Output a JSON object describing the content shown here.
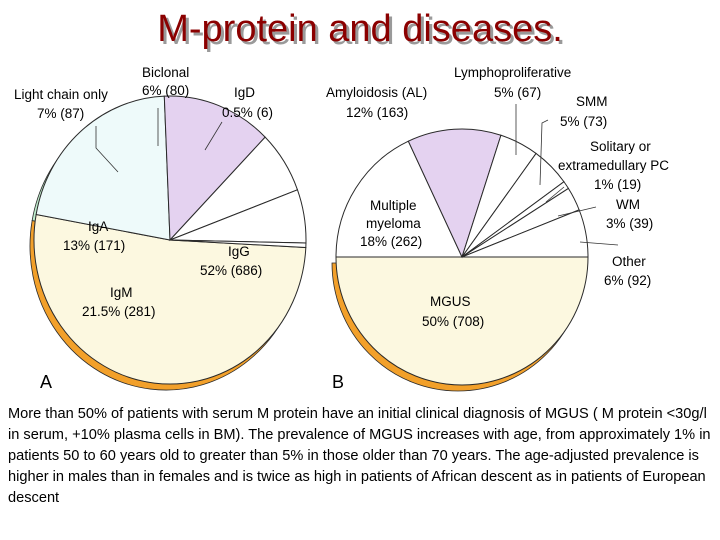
{
  "title": "M-protein and diseases.",
  "chart_data": [
    {
      "type": "pie",
      "panel_label": "A",
      "slices": [
        {
          "name": "IgG",
          "percent_label": "52%",
          "count": "(686)",
          "percent": 52,
          "color": "#fcf8e0"
        },
        {
          "name": "IgM",
          "percent_label": "21.5%",
          "count": "(281)",
          "percent": 21.5,
          "color": "#eefafa"
        },
        {
          "name": "IgA",
          "percent_label": "13%",
          "count": "(171)",
          "percent": 13,
          "color": "#e4d2f0"
        },
        {
          "name": "Light chain only",
          "percent_label": "7%",
          "count": "(87)",
          "percent": 7,
          "color": "#ffffff"
        },
        {
          "name": "Biclonal",
          "percent_label": "6%",
          "count": "(80)",
          "percent": 6,
          "color": "#ffffff"
        },
        {
          "name": "IgD",
          "percent_label": "0.5%",
          "count": "(6)",
          "percent": 0.5,
          "color": "#ffffff"
        }
      ]
    },
    {
      "type": "pie",
      "panel_label": "B",
      "slices": [
        {
          "name": "MGUS",
          "percent_label": "50%",
          "count": "(708)",
          "percent": 50,
          "color": "#fcf8e0"
        },
        {
          "name": "Multiple myeloma",
          "percent_label": "18%",
          "count": "(262)",
          "percent": 18,
          "color": "#ffffff"
        },
        {
          "name": "Amyloidosis (AL)",
          "percent_label": "12%",
          "count": "(163)",
          "percent": 12,
          "color": "#e4d2f0"
        },
        {
          "name": "Lymphoproliferative",
          "percent_label": "5%",
          "count": "(67)",
          "percent": 5,
          "color": "#ffffff"
        },
        {
          "name": "SMM",
          "percent_label": "5%",
          "count": "(73)",
          "percent": 5,
          "color": "#ffffff"
        },
        {
          "name": "Solitary or extramedullary PC",
          "percent_label": "1%",
          "count": "(19)",
          "percent": 1,
          "color": "#ffffff"
        },
        {
          "name": "WM",
          "percent_label": "3%",
          "count": "(39)",
          "percent": 3,
          "color": "#ffffff"
        },
        {
          "name": "Other",
          "percent_label": "6%",
          "count": "(92)",
          "percent": 6,
          "color": "#ffffff"
        }
      ]
    }
  ],
  "labels": {
    "a": {
      "light_l1": "Light chain only",
      "light_l2": "7% (87)",
      "biclonal_l1": "Biclonal",
      "biclonal_l2": "6% (80)",
      "igd_l1": "IgD",
      "igd_l2": "0.5% (6)",
      "iga_l1": "IgA",
      "iga_l2": "13% (171)",
      "igg_l1": "IgG",
      "igg_l2": "52% (686)",
      "igm_l1": "IgM",
      "igm_l2": "21.5% (281)"
    },
    "b": {
      "amyloid_l1": "Amyloidosis (AL)",
      "amyloid_l2": "12% (163)",
      "lympho_l1": "Lymphoproliferative",
      "lympho_l2": "5% (67)",
      "smm_l1": "SMM",
      "smm_l2": "5% (73)",
      "solitary_l1": "Solitary or",
      "solitary_l2": "extramedullary PC",
      "solitary_l3": "1% (19)",
      "wm_l1": "WM",
      "wm_l2": "3% (39)",
      "other_l1": "Other",
      "other_l2": "6% (92)",
      "mm_l1": "Multiple",
      "mm_l2": "myeloma",
      "mm_l3": "18% (262)",
      "mgus_l1": "MGUS",
      "mgus_l2": "50% (708)"
    }
  },
  "caption": "More than 50% of patients with serum M protein have an initial clinical diagnosis of MGUS ( M protein <30g/l in serum, +10% plasma cells in BM). The prevalence of MGUS increases with age, from approximately 1% in patients 50 to 60 years old to greater than 5% in those older than 70 years. The age-adjusted prevalence is higher in males than in females and is twice as high in patients of African descent as in patients of European descent",
  "colors": {
    "title": "#8b0000",
    "title_shadow": "#9a9a9a",
    "edge_orange": "#f2a02a",
    "edge_green": "#bfeccc",
    "edge_purple": "#b89bd0",
    "outline": "#2a2a2a"
  }
}
